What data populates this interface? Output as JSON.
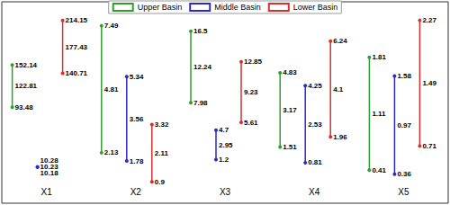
{
  "chart_data": [
    {
      "type": "range",
      "categories": [
        "X1"
      ],
      "ylim": [
        -40,
        240
      ],
      "tick_labels": "x",
      "data_labels": true,
      "grid": false,
      "legend": "top",
      "series": [
        {
          "name": "Upper Basin",
          "color": "#2ca02c",
          "min": [
            93.48
          ],
          "mean": [
            122.81
          ],
          "max": [
            152.14
          ]
        },
        {
          "name": "Middle Basin",
          "color": "#2b2bc8",
          "min": [
            10.18
          ],
          "mean": [
            10.23
          ],
          "max": [
            10.28
          ]
        },
        {
          "name": "Lower Basin",
          "color": "#d62f2f",
          "min": [
            140.71
          ],
          "mean": [
            177.43
          ],
          "max": [
            214.15
          ]
        }
      ]
    },
    {
      "type": "range",
      "categories": [
        "X2"
      ],
      "ylim": [
        0,
        8.5
      ],
      "tick_labels": "x",
      "data_labels": true,
      "grid": false,
      "series": [
        {
          "name": "Upper Basin",
          "color": "#2ca02c",
          "min": [
            2.13
          ],
          "mean": [
            4.81
          ],
          "max": [
            7.49
          ]
        },
        {
          "name": "Middle Basin",
          "color": "#2b2bc8",
          "min": [
            1.78
          ],
          "mean": [
            3.56
          ],
          "max": [
            5.34
          ]
        },
        {
          "name": "Lower Basin",
          "color": "#d62f2f",
          "min": [
            0.9
          ],
          "mean": [
            2.11
          ],
          "max": [
            3.32
          ]
        }
      ]
    },
    {
      "type": "range",
      "categories": [
        "X3"
      ],
      "ylim": [
        -4,
        20
      ],
      "tick_labels": "x",
      "data_labels": true,
      "grid": false,
      "series": [
        {
          "name": "Upper Basin",
          "color": "#2ca02c",
          "min": [
            7.98
          ],
          "mean": [
            12.24
          ],
          "max": [
            16.5
          ]
        },
        {
          "name": "Middle Basin",
          "color": "#2b2bc8",
          "min": [
            1.2
          ],
          "mean": [
            2.95
          ],
          "max": [
            4.7
          ]
        },
        {
          "name": "Lower Basin",
          "color": "#d62f2f",
          "min": [
            5.61
          ],
          "mean": [
            9.23
          ],
          "max": [
            12.85
          ]
        }
      ]
    },
    {
      "type": "range",
      "categories": [
        "X4"
      ],
      "ylim": [
        -1,
        8
      ],
      "tick_labels": "x",
      "data_labels": true,
      "grid": false,
      "series": [
        {
          "name": "Upper Basin",
          "color": "#2ca02c",
          "min": [
            1.51
          ],
          "mean": [
            3.17
          ],
          "max": [
            4.83
          ]
        },
        {
          "name": "Middle Basin",
          "color": "#2b2bc8",
          "min": [
            0.81
          ],
          "mean": [
            2.53
          ],
          "max": [
            4.25
          ]
        },
        {
          "name": "Lower Basin",
          "color": "#d62f2f",
          "min": [
            1.96
          ],
          "mean": [
            4.1
          ],
          "max": [
            6.24
          ]
        }
      ]
    },
    {
      "type": "range",
      "categories": [
        "X5"
      ],
      "ylim": [
        0,
        2.5
      ],
      "tick_labels": "x",
      "data_labels": true,
      "grid": false,
      "series": [
        {
          "name": "Upper Basin",
          "color": "#2ca02c",
          "min": [
            0.41
          ],
          "mean": [
            1.11
          ],
          "max": [
            1.81
          ]
        },
        {
          "name": "Middle Basin",
          "color": "#2b2bc8",
          "min": [
            0.36
          ],
          "mean": [
            0.97
          ],
          "max": [
            1.58
          ]
        },
        {
          "name": "Lower Basin",
          "color": "#d62f2f",
          "min": [
            0.71
          ],
          "mean": [
            1.49
          ],
          "max": [
            2.27
          ]
        }
      ]
    }
  ]
}
